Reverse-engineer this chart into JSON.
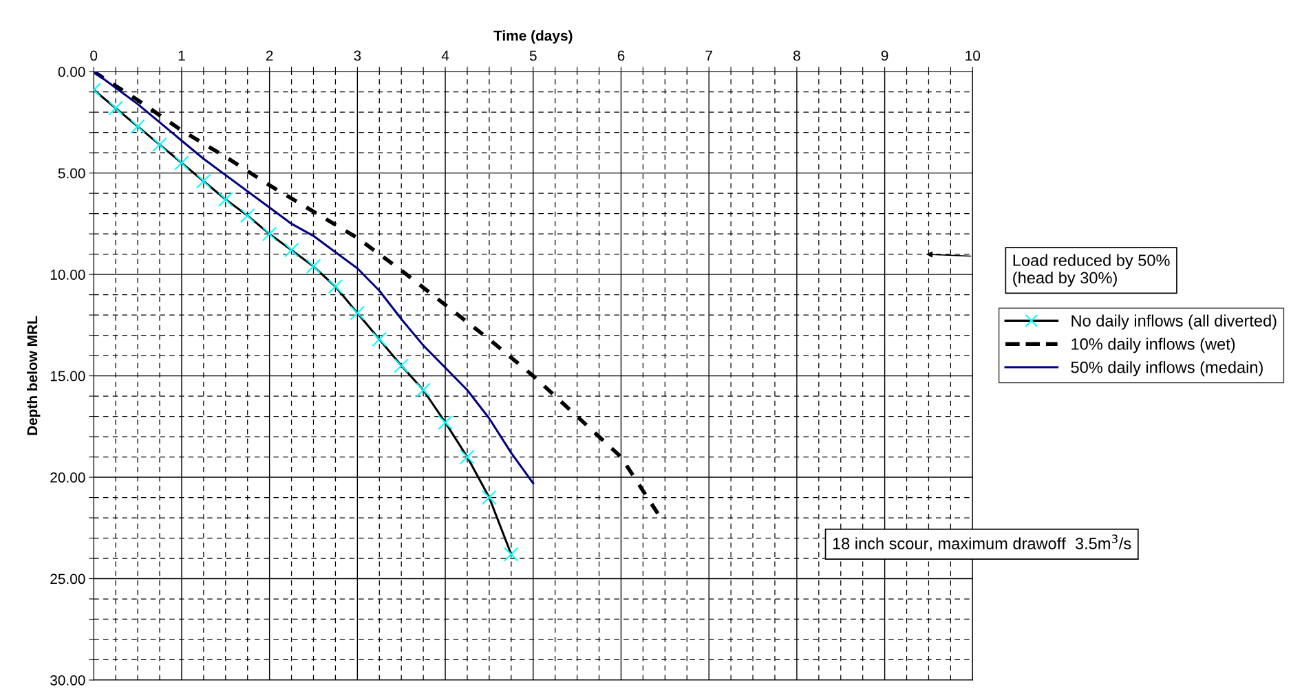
{
  "chart_data": {
    "type": "line",
    "xlabel": "Time (days)",
    "ylabel": "Depth below MRL",
    "xlim": [
      0,
      10
    ],
    "ylim": [
      30,
      0
    ],
    "xticks": [
      0,
      {
        "value": 0.25,
        "label": null
      },
      {
        "value": 0.5,
        "label": null
      },
      {
        "value": 0.75,
        "label": null
      },
      1,
      {
        "value": 1.25,
        "label": null
      },
      {
        "value": 1.5,
        "label": null
      },
      {
        "value": 1.75,
        "label": null
      },
      2,
      {
        "value": 2.25,
        "label": null
      },
      {
        "value": 2.5,
        "label": null
      },
      {
        "value": 2.75,
        "label": null
      },
      3,
      {
        "value": 3.25,
        "label": null
      },
      {
        "value": 3.5,
        "label": null
      },
      {
        "value": 3.75,
        "label": null
      },
      4,
      {
        "value": 4.25,
        "label": null
      },
      {
        "value": 4.5,
        "label": null
      },
      {
        "value": 4.75,
        "label": null
      },
      5,
      {
        "value": 5.25,
        "label": null
      },
      {
        "value": 5.5,
        "label": null
      },
      {
        "value": 5.75,
        "label": null
      },
      6,
      {
        "value": 6.25,
        "label": null
      },
      {
        "value": 6.5,
        "label": null
      },
      {
        "value": 6.75,
        "label": null
      },
      7,
      {
        "value": 7.25,
        "label": null
      },
      {
        "value": 7.5,
        "label": null
      },
      {
        "value": 7.75,
        "label": null
      },
      8,
      {
        "value": 8.25,
        "label": null
      },
      {
        "value": 8.5,
        "label": null
      },
      {
        "value": 8.75,
        "label": null
      },
      9,
      {
        "value": 9.25,
        "label": null
      },
      {
        "value": 9.5,
        "label": null
      },
      {
        "value": 9.75,
        "label": null
      },
      10
    ],
    "yticks": [
      {
        "value": 0,
        "label": "0.00"
      },
      {
        "value": 1,
        "label": null
      },
      {
        "value": 2,
        "label": null
      },
      {
        "value": 3,
        "label": null
      },
      {
        "value": 4,
        "label": null
      },
      {
        "value": 5,
        "label": "5.00"
      },
      {
        "value": 6,
        "label": null
      },
      {
        "value": 7,
        "label": null
      },
      {
        "value": 8,
        "label": null
      },
      {
        "value": 9,
        "label": null
      },
      {
        "value": 10,
        "label": "10.00"
      },
      {
        "value": 11,
        "label": null
      },
      {
        "value": 12,
        "label": null
      },
      {
        "value": 13,
        "label": null
      },
      {
        "value": 14,
        "label": null
      },
      {
        "value": 15,
        "label": "15.00"
      },
      {
        "value": 16,
        "label": null
      },
      {
        "value": 17,
        "label": null
      },
      {
        "value": 18,
        "label": null
      },
      {
        "value": 19,
        "label": null
      },
      {
        "value": 20,
        "label": "20.00"
      },
      {
        "value": 21,
        "label": null
      },
      {
        "value": 22,
        "label": null
      },
      {
        "value": 23,
        "label": null
      },
      {
        "value": 24,
        "label": null
      },
      {
        "value": 25,
        "label": "25.00"
      },
      {
        "value": 26,
        "label": null
      },
      {
        "value": 27,
        "label": null
      },
      {
        "value": 28,
        "label": null
      },
      {
        "value": 29,
        "label": null
      },
      {
        "value": 30,
        "label": "30.00"
      }
    ],
    "grid": true,
    "legend": "right",
    "series": [
      {
        "name": "No daily inflows (all diverted)",
        "color": "#000000",
        "marker": "cross",
        "line_style": "solid",
        "x": [
          0,
          0.25,
          0.5,
          0.75,
          1,
          1.25,
          1.5,
          1.75,
          2,
          2.25,
          2.5,
          2.75,
          3,
          3.25,
          3.5,
          3.75,
          4,
          4.25,
          4.5,
          4.75
        ],
        "values": [
          0.9,
          1.8,
          2.7,
          3.6,
          4.5,
          5.4,
          6.3,
          7.1,
          8.0,
          8.8,
          9.6,
          10.6,
          11.9,
          13.2,
          14.5,
          15.7,
          17.3,
          19.0,
          21.0,
          23.8
        ]
      },
      {
        "name": "10% daily inflows (wet)",
        "color": "#000000",
        "marker": "none",
        "line_style": "dashed",
        "x": [
          0,
          0.5,
          1,
          1.5,
          2,
          2.5,
          3,
          3.5,
          4,
          4.5,
          5,
          5.5,
          6,
          6.45
        ],
        "values": [
          0,
          1.4,
          2.9,
          4.2,
          5.6,
          6.9,
          8.2,
          9.8,
          11.5,
          13.2,
          15.0,
          17.0,
          19.0,
          22.0
        ]
      },
      {
        "name": "50% daily inflows (medain)",
        "color": "#000080",
        "marker": "none",
        "line_style": "solid",
        "x": [
          0,
          0.25,
          0.5,
          0.75,
          1,
          1.25,
          1.5,
          1.75,
          2,
          2.25,
          2.5,
          2.75,
          3,
          3.25,
          3.5,
          3.75,
          4,
          4.25,
          4.5,
          4.75,
          5
        ],
        "values": [
          0,
          0.8,
          1.6,
          2.5,
          3.4,
          4.3,
          5.1,
          5.9,
          6.7,
          7.5,
          8.1,
          8.9,
          9.7,
          10.8,
          12.2,
          13.5,
          14.6,
          15.7,
          17.1,
          18.8,
          20.3
        ]
      }
    ],
    "annotations": [
      "Load reduced by 50%\n(head by 30%)",
      "18 inch scour, maximum drawoff  3.5m$^{3}$/s"
    ]
  }
}
